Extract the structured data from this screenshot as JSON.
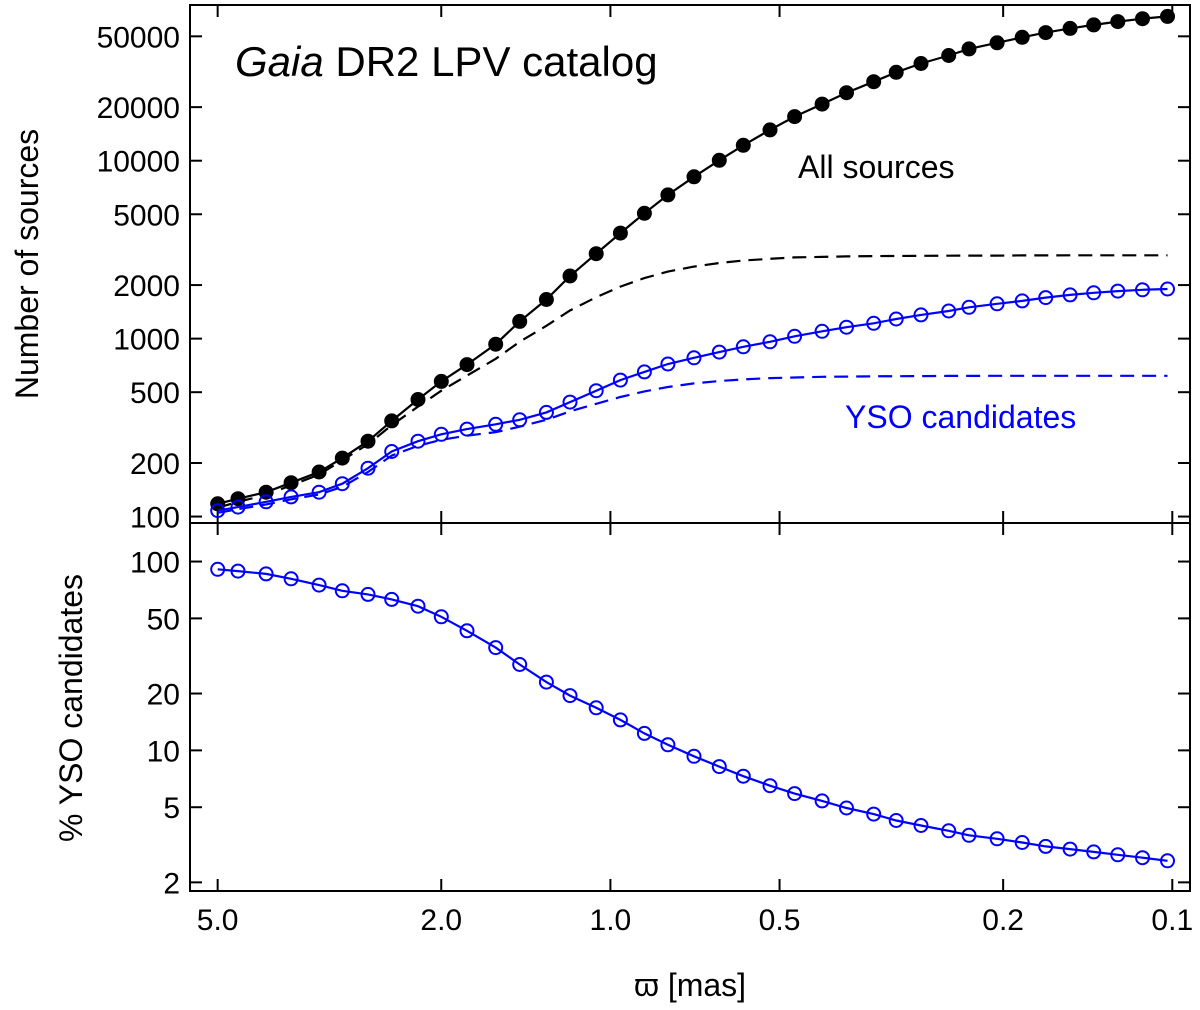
{
  "chart_data": {
    "type": "line",
    "x_scale": "log",
    "x_reversed": true,
    "xlim": [
      5.6,
      0.093
    ],
    "xlabel": "ϖ [mas]",
    "xtick_labels": [
      "5.0",
      "2.0",
      "1.0",
      "0.5",
      "0.2",
      "0.1"
    ],
    "xtick_values": [
      5.0,
      2.0,
      1.0,
      0.5,
      0.2,
      0.1
    ],
    "panels": [
      {
        "id": "top",
        "title_italic": "Gaia",
        "title_rest": " DR2 LPV catalog",
        "ylabel": "Number of sources",
        "y_scale": "log",
        "ylim": [
          92,
          75000
        ],
        "ytick_values": [
          100,
          200,
          500,
          1000,
          2000,
          5000,
          10000,
          20000,
          50000
        ],
        "ytick_labels": [
          "100",
          "200",
          "500",
          "1000",
          "2000",
          "5000",
          "10000",
          "20000",
          "50000"
        ],
        "x": [
          5.0,
          4.6,
          4.1,
          3.7,
          3.3,
          3.0,
          2.7,
          2.45,
          2.2,
          2.0,
          1.8,
          1.6,
          1.45,
          1.3,
          1.18,
          1.06,
          0.96,
          0.87,
          0.79,
          0.71,
          0.64,
          0.58,
          0.52,
          0.47,
          0.42,
          0.38,
          0.34,
          0.31,
          0.28,
          0.25,
          0.23,
          0.205,
          0.185,
          0.168,
          0.152,
          0.138,
          0.125,
          0.113,
          0.102
        ],
        "series": [
          {
            "name": "All sources",
            "label": "All sources",
            "label_color": "#000000",
            "color": "#000000",
            "line": "solid",
            "marker": "filled-circle",
            "values": [
              118,
              126,
              137,
              155,
              178,
              213,
              265,
              345,
              455,
              575,
              715,
              930,
              1250,
              1660,
              2250,
              3000,
              3920,
              5060,
              6420,
              8120,
              10050,
              12200,
              14900,
              17700,
              20800,
              24100,
              27800,
              31400,
              35200,
              39000,
              42500,
              46000,
              49400,
              52500,
              55400,
              58000,
              60500,
              62800,
              64700
            ]
          },
          {
            "name": "All sources (dashed)",
            "color": "#000000",
            "line": "dashed",
            "marker": "none",
            "values": [
              112,
              121,
              132,
              150,
              172,
              207,
              255,
              326,
              415,
              510,
              620,
              770,
              960,
              1180,
              1440,
              1710,
              1960,
              2190,
              2380,
              2540,
              2660,
              2750,
              2810,
              2860,
              2880,
              2900,
              2910,
              2915,
              2920,
              2925,
              2930,
              2930,
              2935,
              2935,
              2940,
              2940,
              2940,
              2940,
              2940
            ]
          },
          {
            "name": "YSO candidates",
            "label": "YSO candidates",
            "label_color": "#0000ff",
            "color": "#0000ff",
            "line": "solid",
            "marker": "open-circle",
            "values": [
              108,
              113,
              121,
              129,
              137,
              153,
              187,
              232,
              265,
              290,
              310,
              330,
              350,
              385,
              440,
              510,
              585,
              650,
              720,
              780,
              840,
              900,
              960,
              1030,
              1100,
              1160,
              1220,
              1290,
              1360,
              1430,
              1500,
              1570,
              1630,
              1700,
              1760,
              1810,
              1850,
              1880,
              1900
            ]
          },
          {
            "name": "YSO candidates (dashed)",
            "color": "#0000ff",
            "line": "dashed",
            "marker": "none",
            "values": [
              105,
              110,
              117,
              125,
              133,
              147,
              178,
              220,
              250,
              270,
              285,
              298,
              320,
              350,
              390,
              430,
              470,
              505,
              535,
              560,
              578,
              590,
              600,
              605,
              610,
              612,
              614,
              615,
              616,
              617,
              617,
              618,
              618,
              618,
              618,
              618,
              618,
              618,
              618
            ]
          }
        ]
      },
      {
        "id": "bottom",
        "ylabel": "% YSO candidates",
        "y_scale": "log",
        "ylim": [
          1.8,
          160
        ],
        "ytick_values": [
          2,
          5,
          10,
          20,
          50,
          100
        ],
        "ytick_labels": [
          "2",
          "5",
          "10",
          "20",
          "50",
          "100"
        ],
        "x": [
          5.0,
          4.6,
          4.1,
          3.7,
          3.3,
          3.0,
          2.7,
          2.45,
          2.2,
          2.0,
          1.8,
          1.6,
          1.45,
          1.3,
          1.18,
          1.06,
          0.96,
          0.87,
          0.79,
          0.71,
          0.64,
          0.58,
          0.52,
          0.47,
          0.42,
          0.38,
          0.34,
          0.31,
          0.28,
          0.25,
          0.23,
          0.205,
          0.185,
          0.168,
          0.152,
          0.138,
          0.125,
          0.113,
          0.102
        ],
        "series": [
          {
            "name": "% YSO candidates",
            "color": "#0000ff",
            "line": "solid",
            "marker": "open-circle",
            "values": [
              91,
              89,
              86,
              81,
              75,
              70,
              67,
              63,
              58,
              51,
              43,
              35,
              28.5,
              23,
              19.5,
              16.8,
              14.5,
              12.3,
              10.7,
              9.3,
              8.2,
              7.3,
              6.5,
              5.9,
              5.4,
              4.95,
              4.6,
              4.25,
              4.0,
              3.75,
              3.55,
              3.4,
              3.25,
              3.1,
              3.0,
              2.9,
              2.8,
              2.7,
              2.6
            ]
          }
        ]
      }
    ]
  }
}
